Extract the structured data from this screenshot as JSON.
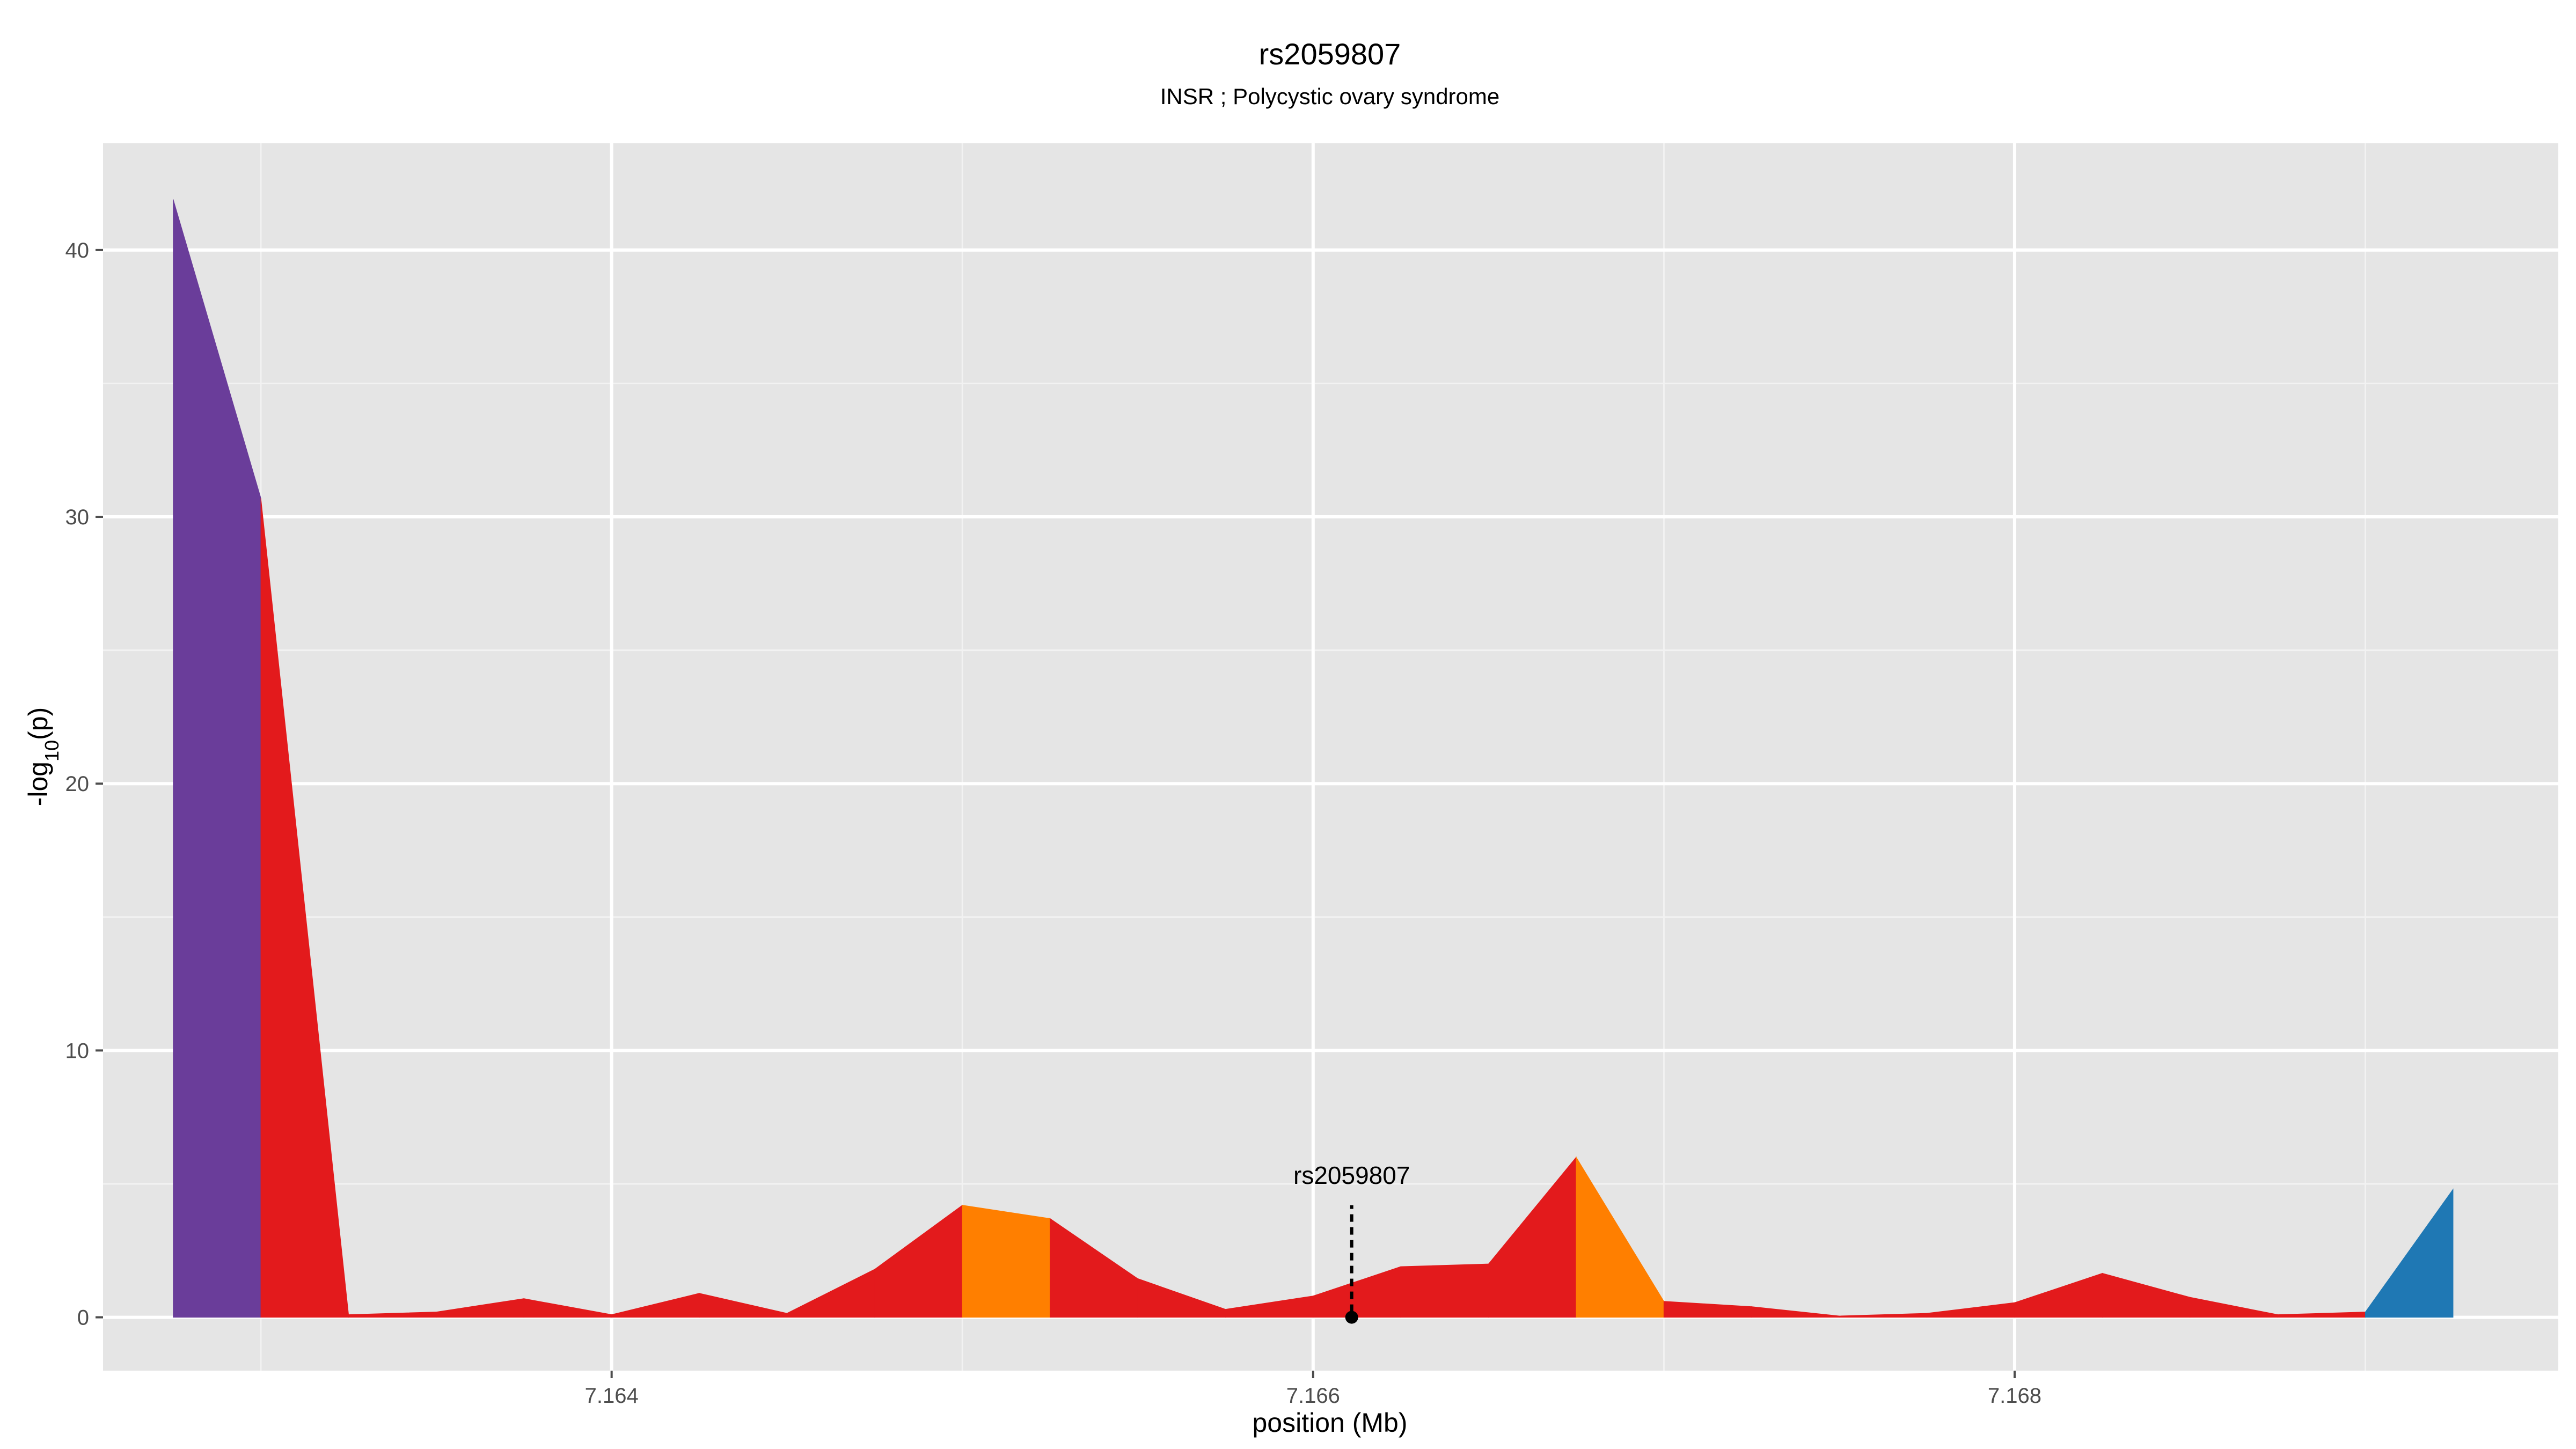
{
  "chart_data": {
    "type": "area",
    "title": "rs2059807",
    "subtitle": "INSR ; Polycystic ovary syndrome",
    "xlabel": "position (Mb)",
    "ylabel_main": "-log",
    "ylabel_sub": "10",
    "ylabel_tail": "(p)",
    "xlim": [
      7.16255,
      7.16955
    ],
    "ylim": [
      -2,
      44
    ],
    "x_ticks": [
      7.164,
      7.166,
      7.168
    ],
    "x_tick_labels": [
      "7.164",
      "7.166",
      "7.168"
    ],
    "y_ticks": [
      0,
      10,
      20,
      30,
      40
    ],
    "y_tick_labels": [
      "0",
      "10",
      "20",
      "30",
      "40"
    ],
    "grid": true,
    "legend": "none",
    "points": [
      {
        "x": 7.16275,
        "y": 41.9
      },
      {
        "x": 7.163,
        "y": 30.7
      },
      {
        "x": 7.16325,
        "y": 0.1
      },
      {
        "x": 7.1635,
        "y": 0.2
      },
      {
        "x": 7.16375,
        "y": 0.7
      },
      {
        "x": 7.164,
        "y": 0.1
      },
      {
        "x": 7.16425,
        "y": 0.9
      },
      {
        "x": 7.1645,
        "y": 0.15
      },
      {
        "x": 7.16475,
        "y": 1.8
      },
      {
        "x": 7.165,
        "y": 4.2
      },
      {
        "x": 7.16525,
        "y": 3.7
      },
      {
        "x": 7.1655,
        "y": 1.45
      },
      {
        "x": 7.16575,
        "y": 0.3
      },
      {
        "x": 7.166,
        "y": 0.8
      },
      {
        "x": 7.16625,
        "y": 1.9
      },
      {
        "x": 7.1665,
        "y": 2.0
      },
      {
        "x": 7.16675,
        "y": 6.0
      },
      {
        "x": 7.167,
        "y": 0.6
      },
      {
        "x": 7.16725,
        "y": 0.4
      },
      {
        "x": 7.1675,
        "y": 0.05
      },
      {
        "x": 7.16775,
        "y": 0.15
      },
      {
        "x": 7.168,
        "y": 0.55
      },
      {
        "x": 7.16825,
        "y": 1.65
      },
      {
        "x": 7.1685,
        "y": 0.75
      },
      {
        "x": 7.16875,
        "y": 0.1
      },
      {
        "x": 7.169,
        "y": 0.2
      },
      {
        "x": 7.16925,
        "y": 4.8
      }
    ],
    "segment_colors": [
      "#6a3d9a",
      "#e31a1c",
      "#e31a1c",
      "#e31a1c",
      "#e31a1c",
      "#e31a1c",
      "#e31a1c",
      "#e31a1c",
      "#e31a1c",
      "#ff7f00",
      "#e31a1c",
      "#e31a1c",
      "#e31a1c",
      "#e31a1c",
      "#e31a1c",
      "#e31a1c",
      "#ff7f00",
      "#e31a1c",
      "#e31a1c",
      "#e31a1c",
      "#e31a1c",
      "#e31a1c",
      "#e31a1c",
      "#e31a1c",
      "#e31a1c",
      "#1f78b4"
    ],
    "annotation": {
      "label": "rs2059807",
      "x": 7.16611,
      "y": 0
    }
  },
  "colors": {
    "panel": "#e5e5e5",
    "grid_major": "#ffffff",
    "grid_minor": "#f2f2f2"
  }
}
